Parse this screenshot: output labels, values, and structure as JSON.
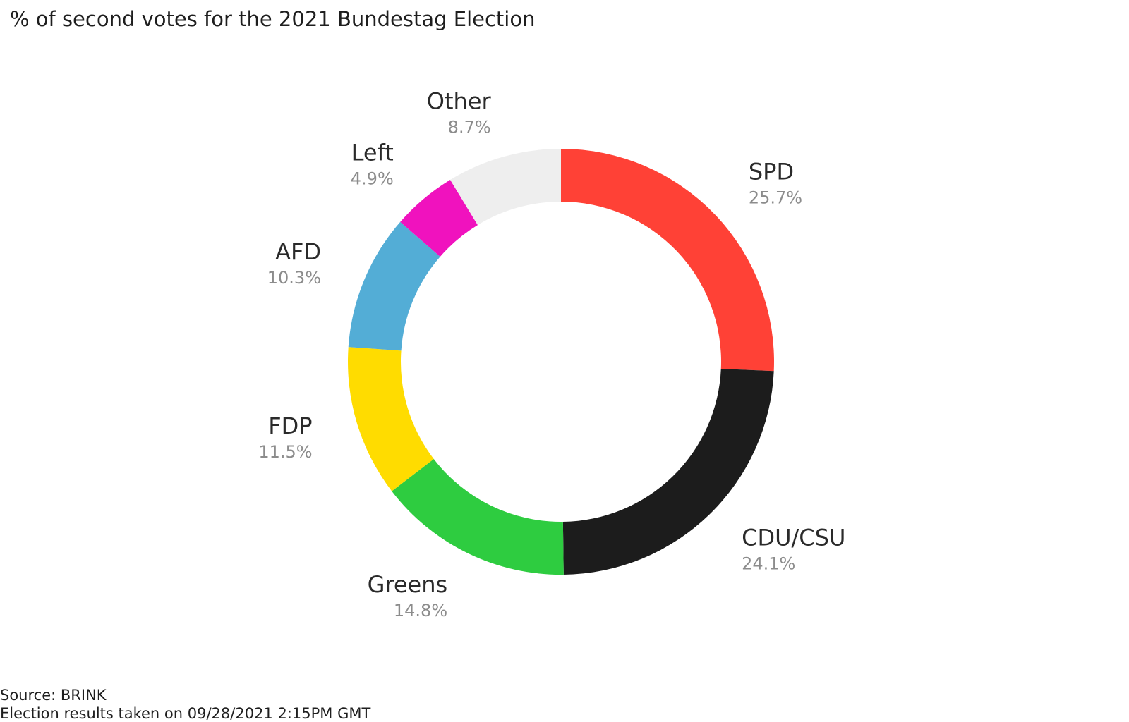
{
  "chart_data": {
    "type": "pie",
    "variant": "donut",
    "title": "% of second votes for the 2021 Bundestag Election",
    "start": "top",
    "direction": "clockwise",
    "slices": [
      {
        "label": "SPD",
        "value": 25.7,
        "display": "25.7%",
        "color": "#FF4136"
      },
      {
        "label": "CDU/CSU",
        "value": 24.1,
        "display": "24.1%",
        "color": "#1C1C1C"
      },
      {
        "label": "Greens",
        "value": 14.8,
        "display": "14.8%",
        "color": "#2ECC40"
      },
      {
        "label": "FDP",
        "value": 11.5,
        "display": "11.5%",
        "color": "#FFDC00"
      },
      {
        "label": "AFD",
        "value": 10.3,
        "display": "10.3%",
        "color": "#53ADD6"
      },
      {
        "label": "Left",
        "value": 4.9,
        "display": "4.9%",
        "color": "#F012BE"
      },
      {
        "label": "Other",
        "value": 8.7,
        "display": "8.7%",
        "color": "#EEEEEE"
      }
    ]
  },
  "footer": {
    "source": "Source: BRINK",
    "note": "Election results taken on 09/28/2021 2:15PM GMT"
  }
}
